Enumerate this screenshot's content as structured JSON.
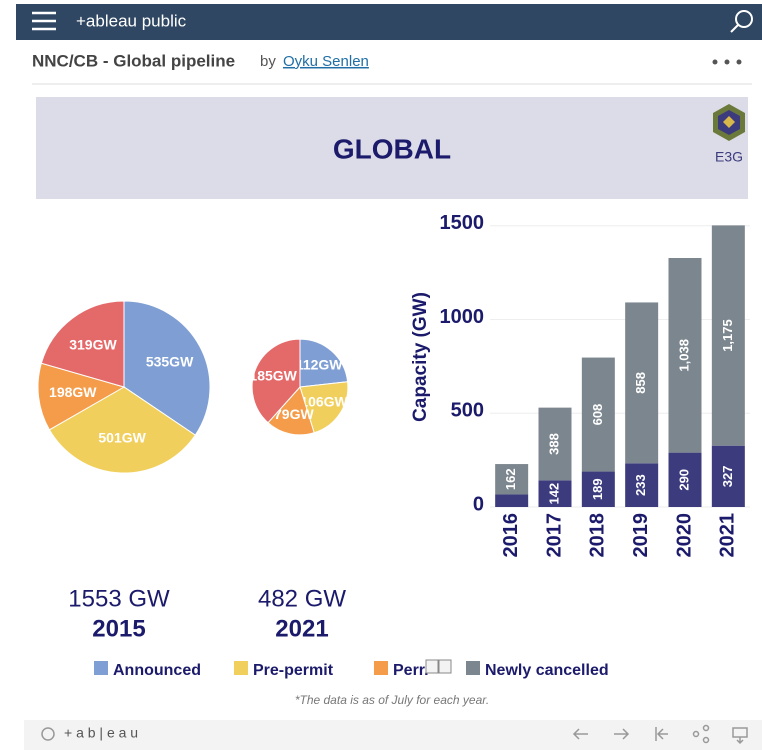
{
  "header": {
    "brand": "+ableau public"
  },
  "workbook": {
    "title": "NNC/CB - Global pipeline",
    "by": "by",
    "author": "Oyku Senlen"
  },
  "dashboard": {
    "banner": "GLOBAL",
    "logo": "E3G",
    "note": "*The data is as of July for each year."
  },
  "legend": [
    {
      "label": "Announced",
      "color": "#7f9fd4"
    },
    {
      "label": "Pre-permit",
      "color": "#f1cf5c"
    },
    {
      "label": "Perr.",
      "color": "#f49c4a"
    },
    {
      "label": "Newly cancelled",
      "color": "#7c868e"
    }
  ],
  "footer": {
    "brand": "+ a b | e a u"
  },
  "chart_data": [
    {
      "type": "pie",
      "title": "2015",
      "total_label": "1553 GW",
      "values": [
        535,
        501,
        198,
        319
      ],
      "value_labels": [
        "535GW",
        "501GW",
        "198GW",
        "319GW"
      ],
      "colors": [
        "#7f9fd4",
        "#f1cf5c",
        "#f49c4a",
        "#e46a6a"
      ]
    },
    {
      "type": "pie",
      "title": "2021",
      "total_label": "482 GW",
      "values": [
        112,
        106,
        79,
        185
      ],
      "value_labels": [
        "112GW",
        "106GW",
        "79GW",
        "185GW"
      ],
      "colors": [
        "#7f9fd4",
        "#f1cf5c",
        "#f49c4a",
        "#e46a6a"
      ]
    },
    {
      "type": "bar",
      "stacked": true,
      "ylabel": "Capacity (GW)",
      "categories": [
        "2016",
        "2017",
        "2018",
        "2019",
        "2020",
        "2021"
      ],
      "series": [
        {
          "color": "#3c3b7d",
          "values": [
            67,
            142,
            189,
            233,
            290,
            327
          ],
          "value_labels": [
            null,
            "142",
            "189",
            "233",
            "290",
            "327"
          ]
        },
        {
          "color": "#7c868e",
          "values": [
            162,
            388,
            608,
            858,
            1038,
            1175
          ],
          "value_labels": [
            "162",
            "388",
            "608",
            "858",
            "1,038",
            "1,175"
          ]
        }
      ],
      "ylim": [
        0,
        1520
      ],
      "yticks": [
        0,
        500,
        1000,
        1500
      ],
      "grid": true
    }
  ]
}
